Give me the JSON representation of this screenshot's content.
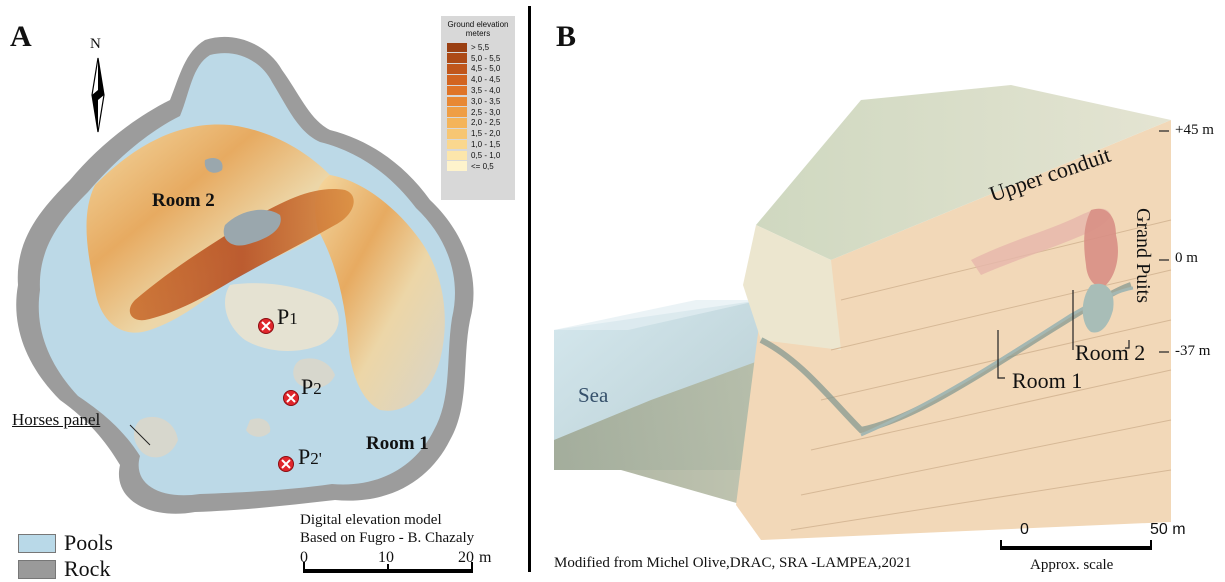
{
  "panel_a": {
    "letter": "A",
    "north_label": "N",
    "rooms": {
      "room2": "Room 2",
      "room1": "Room 1"
    },
    "points": [
      {
        "id": "p1",
        "label": "P1",
        "base": "P",
        "sub": "1"
      },
      {
        "id": "p2",
        "label": "P2",
        "base": "P",
        "sub": "2"
      },
      {
        "id": "p2prime",
        "label": "P2'",
        "base": "P",
        "sub": "2'"
      }
    ],
    "horses_panel": "Horses panel",
    "elevation_legend": {
      "title_line1": "Ground elevation",
      "title_line2": "meters",
      "classes": [
        {
          "label": "> 5,5",
          "color": "#9a3f12"
        },
        {
          "label": "5,0 - 5,5",
          "color": "#ad4a16"
        },
        {
          "label": "4,5 - 5,0",
          "color": "#c0561b"
        },
        {
          "label": "4,0 - 4,5",
          "color": "#d26420"
        },
        {
          "label": "3,5 - 4,0",
          "color": "#df7428"
        },
        {
          "label": "3,0 - 3,5",
          "color": "#e88834"
        },
        {
          "label": "2,5 - 3,0",
          "color": "#ef9e45"
        },
        {
          "label": "2,0 - 2,5",
          "color": "#f4b45a"
        },
        {
          "label": "1,5 - 2,0",
          "color": "#f7c673"
        },
        {
          "label": "1,0 - 1,5",
          "color": "#fad78e"
        },
        {
          "label": "0,5 - 1,0",
          "color": "#fce6ab"
        },
        {
          "label": "<= 0,5",
          "color": "#fef3cc"
        }
      ]
    },
    "map_legend": [
      {
        "label": "Pools",
        "color": "#b9d9e8"
      },
      {
        "label": "Rock",
        "color": "#9a9a9a"
      }
    ],
    "dem_caption_line1": "Digital elevation model",
    "dem_caption_line2": "Based on Fugro - B. Chazaly",
    "scalebar": {
      "ticks": [
        "0",
        "10",
        "20"
      ],
      "unit": "m"
    }
  },
  "panel_b": {
    "letter": "B",
    "labels": {
      "sea": "Sea",
      "upper_conduit": "Upper conduit",
      "grand_puits": "Grand Puits",
      "room1": "Room 1",
      "room2": "Room 2"
    },
    "elevation_ticks": [
      "+45 m",
      "0 m",
      "-37 m"
    ],
    "credit": "Modified from Michel Olive,DRAC, SRA -LAMPEA,2021",
    "scalebar": {
      "ticks": [
        "0",
        "50 m"
      ],
      "caption": "Approx. scale"
    }
  }
}
